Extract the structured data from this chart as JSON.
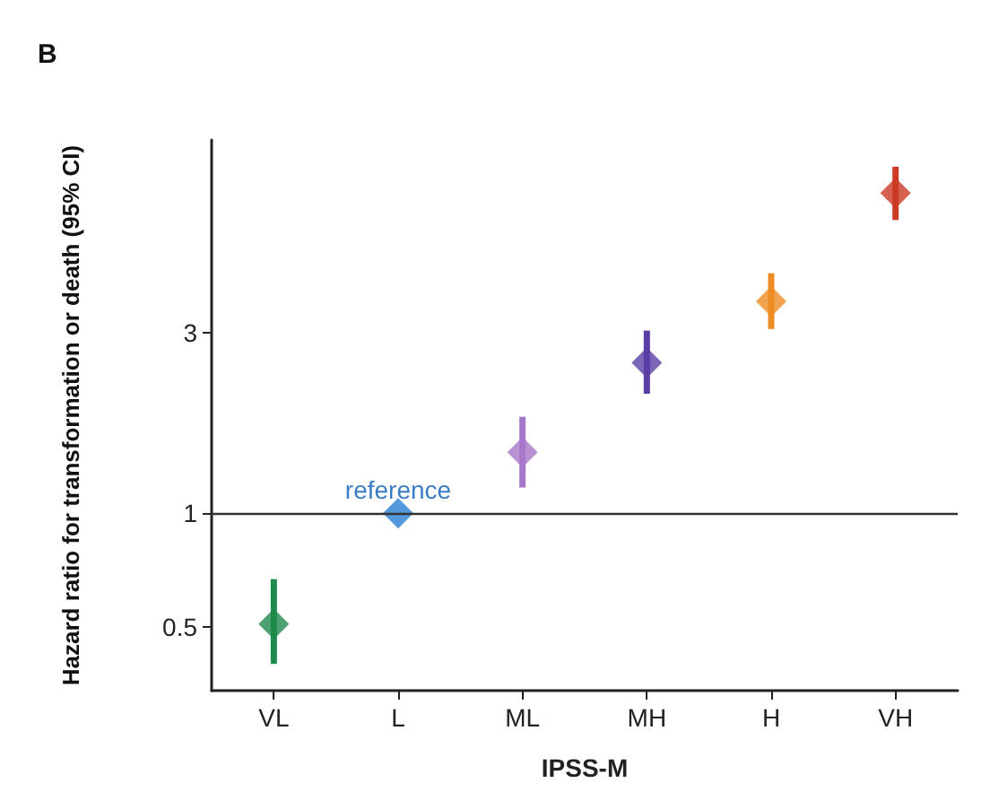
{
  "chart_data": {
    "type": "scatter",
    "title": "B",
    "xlabel": "IPSS-M",
    "ylabel": "Hazard ratio for transformation or death (95% CI)",
    "categories": [
      "VL",
      "L",
      "ML",
      "MH",
      "H",
      "VH"
    ],
    "values": [
      0.51,
      1,
      1.45,
      2.5,
      3.63,
      7.02
    ],
    "errors": [
      [
        0.4,
        0.67
      ],
      null,
      [
        1.17,
        1.8
      ],
      [
        2.07,
        3.04
      ],
      [
        3.07,
        4.31
      ],
      [
        5.96,
        8.24
      ]
    ],
    "colors": [
      "#1e8a4c",
      "#2a7fd4",
      "#a777c9",
      "#5a3ea5",
      "#ee8d24",
      "#cc3a24"
    ],
    "log": "y",
    "ylim": [
      0.34,
      9.7
    ],
    "yticks": [
      0.5,
      1,
      3
    ],
    "ref_lines": [
      {
        "axis": "y",
        "value": 1,
        "color": "#333333"
      }
    ],
    "annotations": [
      {
        "text": "reference",
        "x": "L",
        "y": 1
      }
    ],
    "marker": "diamond",
    "grid": false
  }
}
